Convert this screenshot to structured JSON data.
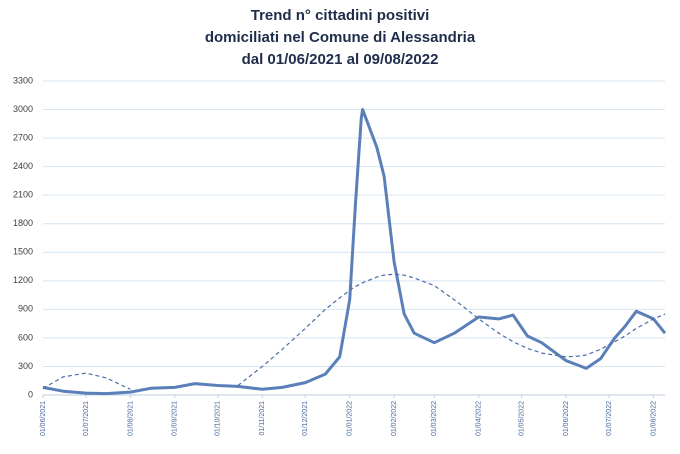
{
  "chart_data": {
    "type": "line",
    "title": [
      "Trend n° cittadini positivi",
      "domiciliati nel Comune di Alessandria",
      "dal 01/06/2021 al 09/08/2022"
    ],
    "x": [
      "01/06/2021",
      "15/06/2021",
      "01/07/2021",
      "15/07/2021",
      "01/08/2021",
      "15/08/2021",
      "01/09/2021",
      "15/09/2021",
      "01/10/2021",
      "15/10/2021",
      "01/11/2021",
      "15/11/2021",
      "01/12/2021",
      "15/12/2021",
      "25/12/2021",
      "01/01/2022",
      "05/01/2022",
      "09/01/2022",
      "10/01/2022",
      "15/01/2022",
      "20/01/2022",
      "25/01/2022",
      "01/02/2022",
      "08/02/2022",
      "15/02/2022",
      "01/03/2022",
      "15/03/2022",
      "22/03/2022",
      "01/04/2022",
      "15/04/2022",
      "25/04/2022",
      "05/05/2022",
      "15/05/2022",
      "01/06/2022",
      "10/06/2022",
      "15/06/2022",
      "25/06/2022",
      "05/07/2022",
      "12/07/2022",
      "20/07/2022",
      "01/08/2022",
      "09/08/2022"
    ],
    "series": [
      {
        "color": "#5b7fb8",
        "style": "solid",
        "values": [
          80,
          40,
          20,
          15,
          30,
          70,
          80,
          120,
          100,
          90,
          60,
          80,
          130,
          220,
          400,
          1000,
          2000,
          2900,
          3000,
          2800,
          2600,
          2300,
          1400,
          850,
          650,
          550,
          650,
          720,
          820,
          800,
          840,
          620,
          550,
          360,
          310,
          280,
          380,
          600,
          720,
          880,
          800,
          650
        ]
      },
      {
        "color": "#4a6fa8",
        "style": "dashed",
        "values": [
          70,
          190,
          230,
          180,
          60,
          null,
          null,
          null,
          null,
          100,
          300,
          480,
          700,
          900,
          1020,
          1100,
          1140,
          1170,
          1180,
          1210,
          1240,
          1260,
          1270,
          1260,
          1230,
          1150,
          1000,
          920,
          800,
          650,
          560,
          490,
          440,
          400,
          410,
          420,
          480,
          560,
          620,
          700,
          800,
          850
        ]
      }
    ],
    "xlim": [
      "01/06/2021",
      "09/08/2022"
    ],
    "xticks": [
      "01/06/2021",
      "01/07/2021",
      "01/08/2021",
      "01/09/2021",
      "01/10/2021",
      "01/11/2021",
      "01/12/2021",
      "01/01/2022",
      "01/02/2022",
      "01/03/2022",
      "01/04/2022",
      "01/05/2022",
      "01/06/2022",
      "01/07/2022",
      "01/08/2022"
    ],
    "ylim": [
      0,
      3300
    ],
    "yticks": [
      0,
      300,
      600,
      900,
      1200,
      1500,
      1800,
      2100,
      2400,
      2700,
      3000,
      3300
    ],
    "grid": true
  }
}
